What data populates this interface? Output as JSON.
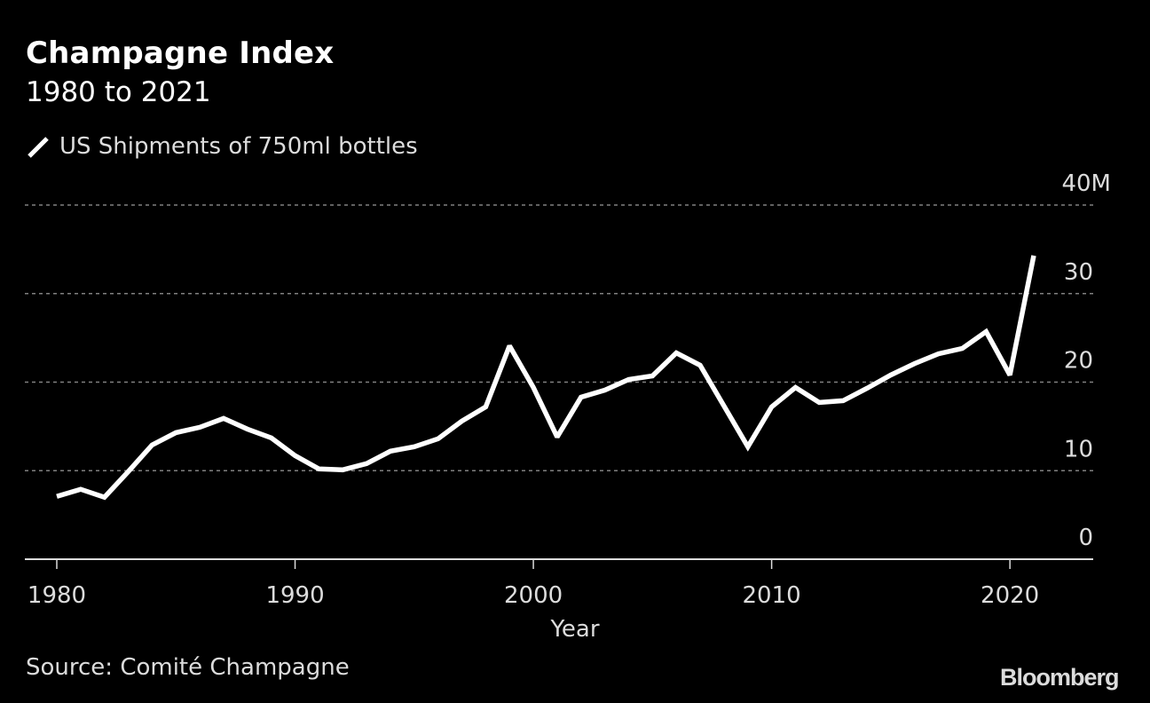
{
  "header": {
    "title": "Champagne Index",
    "subtitle": "1980 to 2021"
  },
  "legend": {
    "label": "US Shipments of 750ml bottles"
  },
  "footer": {
    "source": "Source: Comité Champagne",
    "brand": "Bloomberg"
  },
  "colors": {
    "background": "#000000",
    "line": "#ffffff",
    "grid": "#808080",
    "axis": "#dcdcdc",
    "text": "#dcdcdc"
  },
  "chart_data": {
    "type": "line",
    "title": "Champagne Index",
    "subtitle": "1980 to 2021",
    "xlabel": "Year",
    "ylabel": "",
    "xlim": [
      1980,
      2021
    ],
    "ylim": [
      0,
      40
    ],
    "grid": true,
    "legend_position": "top-left",
    "x_ticks": [
      1980,
      1990,
      2000,
      2010,
      2020
    ],
    "x_tick_labels": [
      "1980",
      "1990",
      "2000",
      "2010",
      "2020"
    ],
    "y_ticks": [
      0,
      10,
      20,
      30,
      40
    ],
    "y_tick_labels": [
      "0",
      "10",
      "20",
      "30",
      "40M"
    ],
    "y_axis_side": "right",
    "series": [
      {
        "name": "US Shipments of 750ml bottles",
        "unit": "M",
        "x": [
          1980,
          1981,
          1982,
          1983,
          1984,
          1985,
          1986,
          1987,
          1988,
          1989,
          1990,
          1991,
          1992,
          1993,
          1994,
          1995,
          1996,
          1997,
          1998,
          1999,
          2000,
          2001,
          2002,
          2003,
          2004,
          2005,
          2006,
          2007,
          2008,
          2009,
          2010,
          2011,
          2012,
          2013,
          2014,
          2015,
          2016,
          2017,
          2018,
          2019,
          2020,
          2021
        ],
        "values": [
          7.1,
          7.9,
          7.0,
          9.9,
          12.9,
          14.3,
          14.9,
          15.9,
          14.7,
          13.7,
          11.7,
          10.2,
          10.1,
          10.8,
          12.2,
          12.7,
          13.6,
          15.6,
          17.2,
          24.1,
          19.4,
          13.8,
          18.3,
          19.1,
          20.3,
          20.7,
          23.3,
          21.9,
          17.3,
          12.7,
          17.2,
          19.4,
          17.7,
          17.9,
          19.3,
          20.8,
          22.1,
          23.2,
          23.8,
          25.7,
          20.8,
          34.3
        ]
      }
    ]
  }
}
